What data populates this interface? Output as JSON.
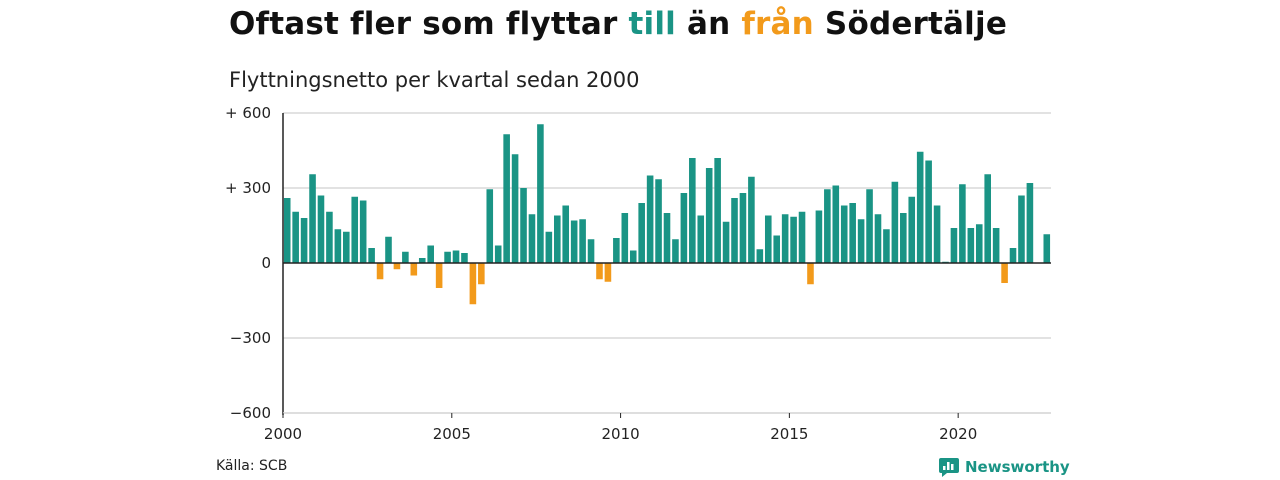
{
  "title": {
    "part1": "Oftast fler som flyttar ",
    "positive_word": "till",
    "part2": " än ",
    "negative_word": "från",
    "part3": " Södertälje"
  },
  "subtitle": "Flyttningsnetto per kvartal sedan 2000",
  "source": "Källa: SCB",
  "brand": "Newsworthy",
  "colors": {
    "positive": "#1a9485",
    "negative": "#f29a1b",
    "grid": "#d9d9d9",
    "zero_line": "#222222"
  },
  "chart_data": {
    "type": "bar",
    "start_year": 2000,
    "period": "quarter",
    "ylim": [
      -600,
      600
    ],
    "yticks": [
      {
        "value": 600,
        "label": "+ 600"
      },
      {
        "value": 300,
        "label": "+ 300"
      },
      {
        "value": 0,
        "label": "0"
      },
      {
        "value": -300,
        "label": "−300"
      },
      {
        "value": -600,
        "label": "−600"
      }
    ],
    "xticks": [
      "2000",
      "2005",
      "2010",
      "2015",
      "2020"
    ],
    "grid": true,
    "values": [
      260,
      205,
      180,
      355,
      270,
      205,
      135,
      125,
      265,
      250,
      60,
      -65,
      105,
      -25,
      45,
      -50,
      20,
      70,
      -100,
      45,
      50,
      40,
      -165,
      -85,
      295,
      70,
      515,
      435,
      300,
      195,
      555,
      125,
      190,
      230,
      170,
      175,
      95,
      -65,
      -75,
      100,
      200,
      50,
      240,
      350,
      335,
      200,
      95,
      280,
      420,
      190,
      380,
      420,
      165,
      260,
      280,
      345,
      55,
      190,
      110,
      195,
      185,
      205,
      -85,
      210,
      295,
      310,
      230,
      240,
      175,
      295,
      195,
      135,
      325,
      200,
      265,
      445,
      410,
      230,
      5,
      140,
      315,
      140,
      155,
      355,
      140,
      -80,
      60,
      270,
      320,
      0,
      115
    ]
  }
}
